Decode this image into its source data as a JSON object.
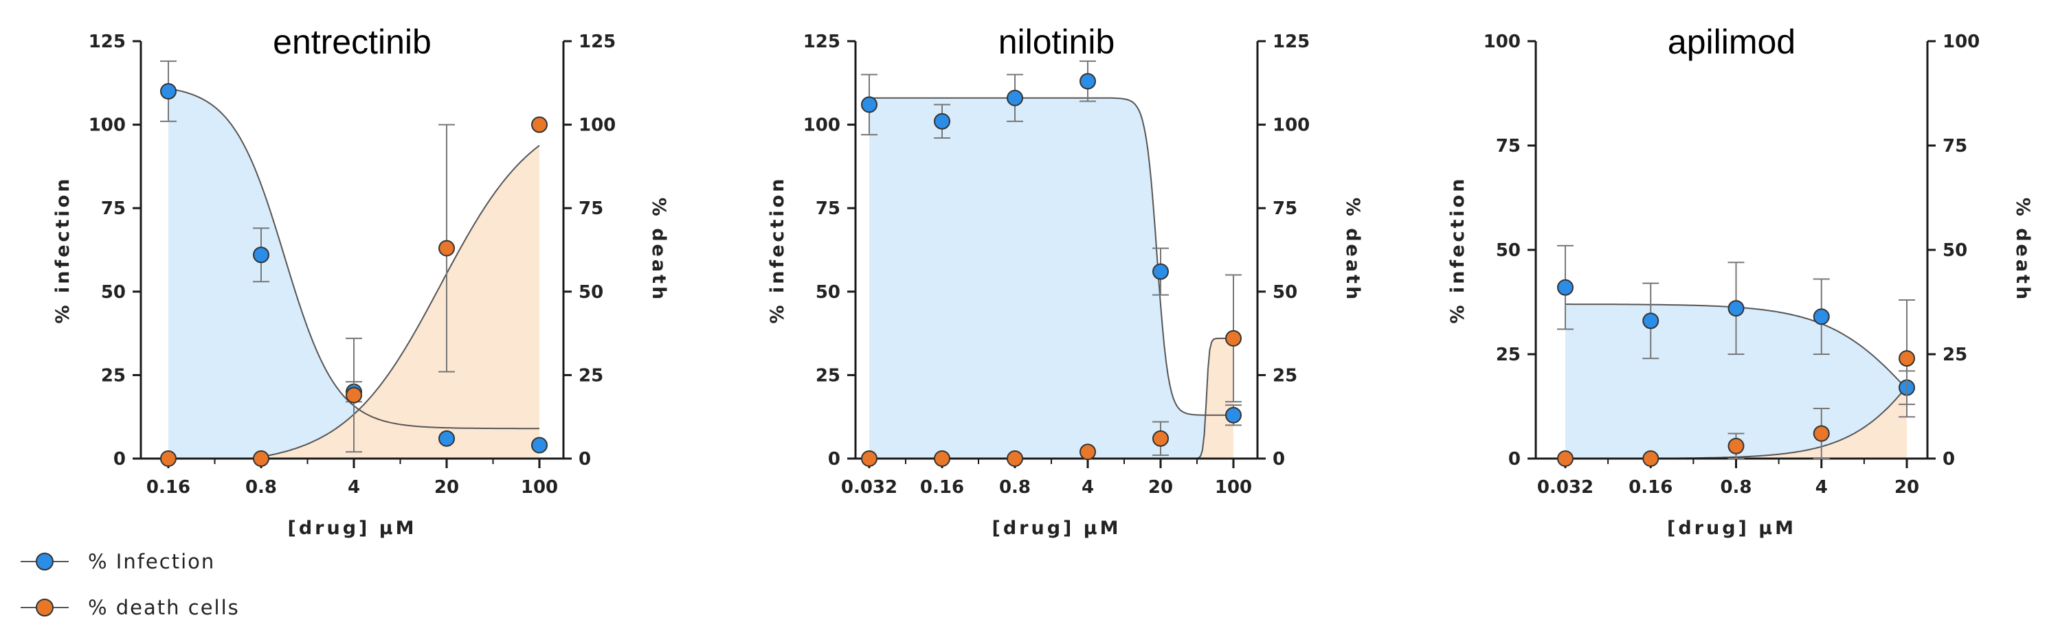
{
  "colors": {
    "infection": "#2b8de6",
    "infection_fill": "#d9ecfb",
    "death": "#e8772a",
    "death_fill": "#fce7d3",
    "axis": "#1a1a1a",
    "curve": "#555555",
    "errorbar": "#777777"
  },
  "legend": {
    "infection_label": "% Infection",
    "death_label": "% death cells"
  },
  "chart_data": [
    {
      "type": "scatter",
      "title": "entrectinib",
      "xlabel": "[drug] µM",
      "ylabel_left": "% infection",
      "ylabel_right": "% death",
      "x_scale": "log",
      "x_ticks": [
        0.16,
        0.8,
        4,
        20,
        100
      ],
      "x_tick_labels": [
        "0.16",
        "0.8",
        "4",
        "20",
        "100"
      ],
      "xlim": [
        0.16,
        100
      ],
      "ylim_left": [
        0,
        125
      ],
      "ylim_right": [
        0,
        125
      ],
      "y_ticks_left": [
        0,
        25,
        50,
        75,
        100,
        125
      ],
      "y_ticks_right": [
        0,
        25,
        50,
        75,
        100,
        125
      ],
      "series": [
        {
          "name": "% Infection",
          "x": [
            0.16,
            0.8,
            4,
            20,
            100
          ],
          "y": [
            110,
            61,
            20,
            6,
            4
          ],
          "err": [
            9,
            8,
            3,
            0,
            0
          ],
          "curve": {
            "model": "hill",
            "top": 112,
            "bottom": 9,
            "ec50": 1.2,
            "hill": 2.2
          }
        },
        {
          "name": "% death cells",
          "x": [
            0.16,
            0.8,
            4,
            20,
            100
          ],
          "y": [
            0,
            0,
            19,
            63,
            100
          ],
          "err": [
            0,
            0,
            17,
            37,
            0
          ],
          "curve": {
            "model": "hill",
            "top": 106,
            "bottom": -2,
            "ec50": 18,
            "hill": 1.2
          }
        }
      ]
    },
    {
      "type": "scatter",
      "title": "nilotinib",
      "xlabel": "[drug] µM",
      "ylabel_left": "% infection",
      "ylabel_right": "% death",
      "x_scale": "log",
      "x_ticks": [
        0.032,
        0.16,
        0.8,
        4,
        20,
        100
      ],
      "x_tick_labels": [
        "0.032",
        "0.16",
        "0.8",
        "4",
        "20",
        "100"
      ],
      "xlim": [
        0.032,
        100
      ],
      "ylim_left": [
        0,
        125
      ],
      "ylim_right": [
        0,
        125
      ],
      "y_ticks_left": [
        0,
        25,
        50,
        75,
        100,
        125
      ],
      "y_ticks_right": [
        0,
        25,
        50,
        75,
        100,
        125
      ],
      "series": [
        {
          "name": "% Infection",
          "x": [
            0.032,
            0.16,
            0.8,
            4,
            20,
            100
          ],
          "y": [
            106,
            101,
            108,
            113,
            56,
            13
          ],
          "err": [
            9,
            5,
            7,
            6,
            7,
            3
          ],
          "curve": {
            "model": "hill",
            "top": 108,
            "bottom": 13,
            "ec50": 18.5,
            "hill": 8
          }
        },
        {
          "name": "% death cells",
          "x": [
            0.032,
            0.16,
            0.8,
            4,
            20,
            100
          ],
          "y": [
            0,
            0,
            0,
            2,
            6,
            36
          ],
          "err": [
            0,
            0,
            0,
            0,
            5,
            19
          ],
          "curve": {
            "model": "hill",
            "top": 36,
            "bottom": 0,
            "ec50": 55,
            "hill": 30
          }
        }
      ]
    },
    {
      "type": "scatter",
      "title": "apilimod",
      "xlabel": "[drug] µM",
      "ylabel_left": "% infection",
      "ylabel_right": "% death",
      "x_scale": "log",
      "x_ticks": [
        0.032,
        0.16,
        0.8,
        4,
        20
      ],
      "x_tick_labels": [
        "0.032",
        "0.16",
        "0.8",
        "4",
        "20"
      ],
      "xlim": [
        0.032,
        20
      ],
      "ylim_left": [
        0,
        100
      ],
      "ylim_right": [
        0,
        100
      ],
      "y_ticks_left": [
        0,
        25,
        50,
        75,
        100
      ],
      "y_ticks_right": [
        0,
        25,
        50,
        75,
        100
      ],
      "series": [
        {
          "name": "% Infection",
          "x": [
            0.032,
            0.16,
            0.8,
            4,
            20
          ],
          "y": [
            41,
            33,
            36,
            34,
            17
          ],
          "err": [
            10,
            9,
            11,
            9,
            4
          ],
          "curve": {
            "model": "hill",
            "top": 37,
            "bottom": -10,
            "ec50": 25,
            "hill": 1.2
          }
        },
        {
          "name": "% death cells",
          "x": [
            0.032,
            0.16,
            0.8,
            4,
            20
          ],
          "y": [
            0,
            0,
            3,
            6,
            24
          ],
          "err": [
            0,
            0,
            3,
            6,
            14
          ],
          "curve": {
            "model": "hill",
            "top": 60,
            "bottom": 0,
            "ec50": 40,
            "hill": 1.3
          }
        }
      ]
    }
  ]
}
